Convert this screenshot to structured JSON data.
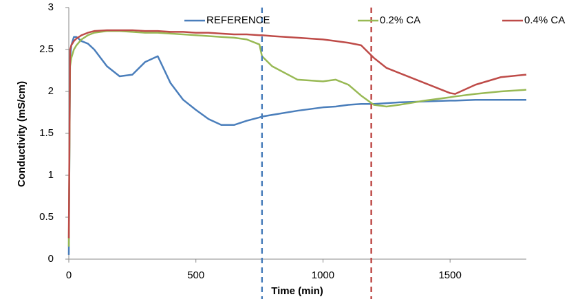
{
  "chart_data": {
    "type": "line",
    "x_label": "Time (min)",
    "y_label": "Conductivity (mS/cm)",
    "x": [
      0,
      5,
      10,
      20,
      30,
      50,
      75,
      100,
      150,
      200,
      250,
      300,
      350,
      400,
      450,
      500,
      550,
      600,
      650,
      700,
      750,
      760,
      800,
      900,
      1000,
      1050,
      1100,
      1150,
      1200,
      1250,
      1300,
      1400,
      1500,
      1520,
      1600,
      1700,
      1800
    ],
    "series": [
      {
        "name": "REFERENCE",
        "color": "#4a7ebb",
        "values": [
          0.05,
          2.4,
          2.55,
          2.65,
          2.65,
          2.6,
          2.57,
          2.5,
          2.3,
          2.18,
          2.2,
          2.35,
          2.42,
          2.1,
          1.9,
          1.78,
          1.67,
          1.6,
          1.6,
          1.65,
          1.69,
          1.7,
          1.72,
          1.77,
          1.81,
          1.82,
          1.84,
          1.85,
          1.85,
          1.86,
          1.87,
          1.88,
          1.89,
          1.89,
          1.9,
          1.9,
          1.9
        ]
      },
      {
        "name": "0.2% CA",
        "color": "#98b954",
        "values": [
          0.15,
          2.3,
          2.4,
          2.5,
          2.55,
          2.62,
          2.67,
          2.7,
          2.72,
          2.72,
          2.71,
          2.7,
          2.7,
          2.69,
          2.68,
          2.67,
          2.66,
          2.65,
          2.64,
          2.62,
          2.56,
          2.42,
          2.3,
          2.14,
          2.12,
          2.14,
          2.08,
          1.95,
          1.84,
          1.82,
          1.84,
          1.89,
          1.93,
          1.94,
          1.97,
          2.0,
          2.02
        ]
      },
      {
        "name": "0.4% CA",
        "color": "#be4b48",
        "values": [
          0.25,
          2.5,
          2.55,
          2.6,
          2.63,
          2.67,
          2.7,
          2.72,
          2.73,
          2.73,
          2.73,
          2.72,
          2.72,
          2.71,
          2.71,
          2.7,
          2.7,
          2.69,
          2.68,
          2.68,
          2.67,
          2.67,
          2.66,
          2.64,
          2.62,
          2.6,
          2.58,
          2.55,
          2.4,
          2.28,
          2.22,
          2.1,
          1.98,
          1.97,
          2.08,
          2.17,
          2.2
        ]
      }
    ],
    "vlines": [
      {
        "x": 760,
        "color": "#4a7ebb"
      },
      {
        "x": 1190,
        "color": "#be4b48"
      }
    ],
    "xlim": [
      0,
      1800
    ],
    "xticks": [
      0,
      500,
      1000,
      1500
    ],
    "ylim": [
      0,
      3
    ],
    "yticks": [
      0,
      0.5,
      1,
      1.5,
      2,
      2.5,
      3
    ],
    "grid": false,
    "legend": "top"
  }
}
